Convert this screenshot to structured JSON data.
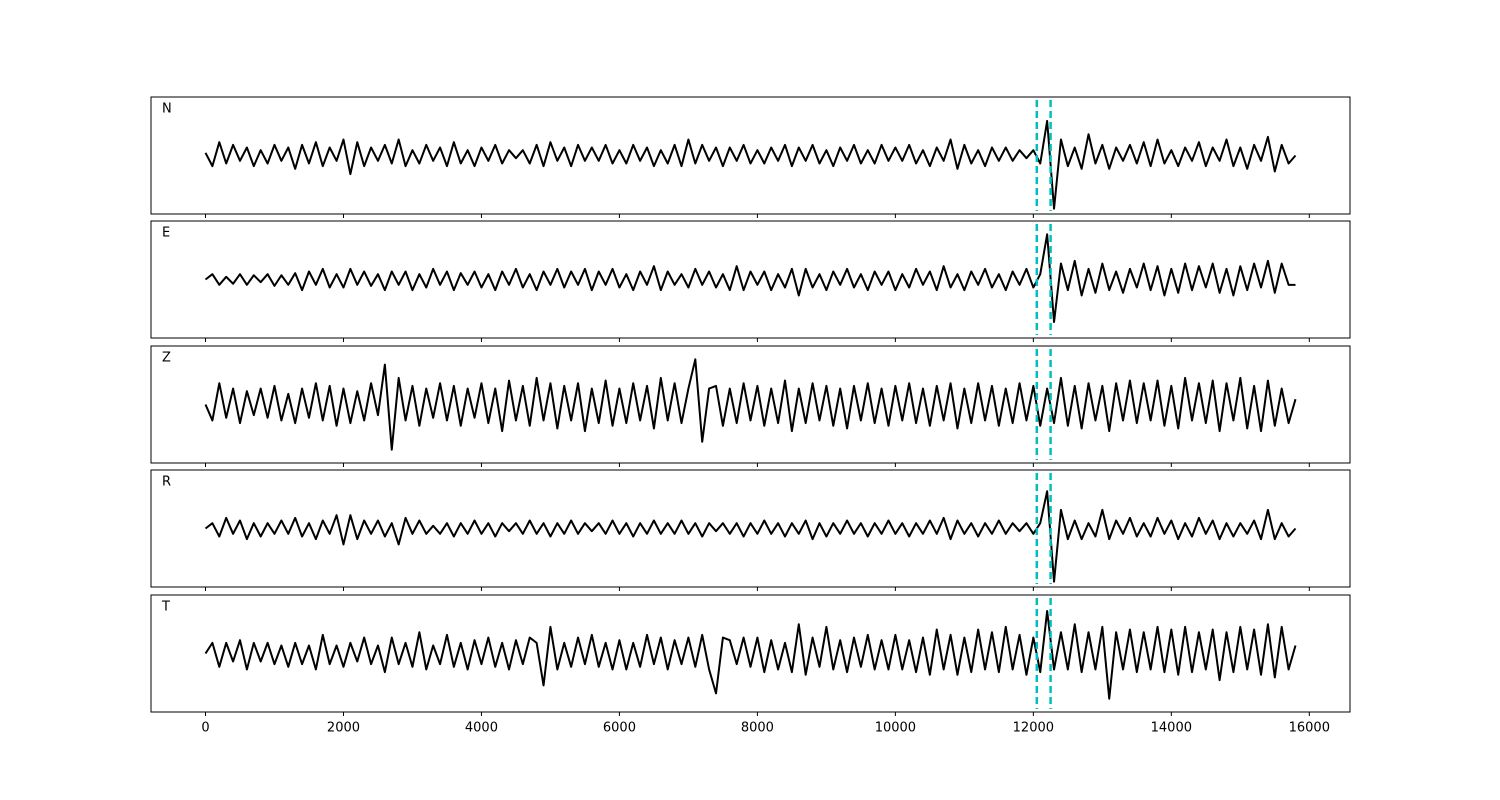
{
  "chart_data": {
    "type": "line",
    "x": [
      0,
      100,
      200,
      300,
      400,
      500,
      600,
      700,
      800,
      900,
      1000,
      1100,
      1200,
      1300,
      1400,
      1500,
      1600,
      1700,
      1800,
      1900,
      2000,
      2100,
      2200,
      2300,
      2400,
      2500,
      2600,
      2700,
      2800,
      2900,
      3000,
      3100,
      3200,
      3300,
      3400,
      3500,
      3600,
      3700,
      3800,
      3900,
      4000,
      4100,
      4200,
      4300,
      4400,
      4500,
      4600,
      4700,
      4800,
      4900,
      5000,
      5100,
      5200,
      5300,
      5400,
      5500,
      5600,
      5700,
      5800,
      5900,
      6000,
      6100,
      6200,
      6300,
      6400,
      6500,
      6600,
      6700,
      6800,
      6900,
      7000,
      7100,
      7200,
      7300,
      7400,
      7500,
      7600,
      7700,
      7800,
      7900,
      8000,
      8100,
      8200,
      8300,
      8400,
      8500,
      8600,
      8700,
      8800,
      8900,
      9000,
      9100,
      9200,
      9300,
      9400,
      9500,
      9600,
      9700,
      9800,
      9900,
      10000,
      10100,
      10200,
      10300,
      10400,
      10500,
      10600,
      10700,
      10800,
      10900,
      11000,
      11100,
      11200,
      11300,
      11400,
      11500,
      11600,
      11700,
      11800,
      11900,
      12000,
      12100,
      12200,
      12300,
      12400,
      12500,
      12600,
      12700,
      12800,
      12900,
      13000,
      13100,
      13200,
      13300,
      13400,
      13500,
      13600,
      13700,
      13800,
      13900,
      14000,
      14100,
      14200,
      14300,
      14400,
      14500,
      14600,
      14700,
      14800,
      14900,
      15000,
      15100,
      15200,
      15300,
      15400,
      15500,
      15600,
      15700,
      15800
    ],
    "series": [
      {
        "name": "N",
        "color": "#000000",
        "values": [
          0.05,
          -0.2,
          0.25,
          -0.15,
          0.2,
          -0.1,
          0.15,
          -0.2,
          0.1,
          -0.15,
          0.2,
          -0.1,
          0.15,
          -0.25,
          0.2,
          -0.15,
          0.25,
          -0.2,
          0.15,
          -0.1,
          0.3,
          -0.35,
          0.25,
          -0.2,
          0.15,
          -0.1,
          0.2,
          -0.15,
          0.3,
          -0.2,
          0.1,
          -0.15,
          0.2,
          -0.1,
          0.15,
          -0.2,
          0.25,
          -0.15,
          0.1,
          -0.2,
          0.15,
          -0.1,
          0.2,
          -0.15,
          0.1,
          -0.05,
          0.1,
          -0.15,
          0.2,
          -0.2,
          0.25,
          -0.1,
          0.15,
          -0.2,
          0.2,
          -0.1,
          0.15,
          -0.1,
          0.2,
          -0.15,
          0.1,
          -0.15,
          0.2,
          -0.1,
          0.15,
          -0.2,
          0.1,
          -0.15,
          0.2,
          -0.2,
          0.3,
          -0.15,
          0.2,
          -0.1,
          0.15,
          -0.2,
          0.15,
          -0.1,
          0.2,
          -0.15,
          0.1,
          -0.15,
          0.15,
          -0.1,
          0.2,
          -0.2,
          0.15,
          -0.1,
          0.2,
          -0.15,
          0.1,
          -0.2,
          0.15,
          -0.1,
          0.2,
          -0.15,
          0.1,
          -0.15,
          0.2,
          -0.1,
          0.15,
          -0.1,
          0.2,
          -0.15,
          0.1,
          -0.2,
          0.15,
          -0.1,
          0.3,
          -0.25,
          0.2,
          -0.15,
          0.1,
          -0.2,
          0.15,
          -0.1,
          0.15,
          -0.1,
          0.1,
          -0.05,
          0.1,
          -0.15,
          0.65,
          -1.0,
          0.3,
          -0.2,
          0.15,
          -0.25,
          0.4,
          -0.15,
          0.2,
          -0.25,
          0.15,
          -0.1,
          0.2,
          -0.15,
          0.25,
          -0.2,
          0.3,
          -0.15,
          0.1,
          -0.2,
          0.15,
          -0.1,
          0.25,
          -0.2,
          0.15,
          -0.1,
          0.3,
          -0.2,
          0.15,
          -0.25,
          0.2,
          -0.1,
          0.35,
          -0.3,
          0.2,
          -0.15,
          0.0
        ]
      },
      {
        "name": "E",
        "color": "#000000",
        "values": [
          0.0,
          0.1,
          -0.1,
          0.05,
          -0.08,
          0.1,
          -0.1,
          0.08,
          -0.05,
          0.1,
          -0.12,
          0.08,
          -0.1,
          0.12,
          -0.2,
          0.15,
          -0.1,
          0.2,
          -0.15,
          0.1,
          -0.15,
          0.2,
          -0.1,
          0.15,
          -0.12,
          0.1,
          -0.2,
          0.15,
          -0.1,
          0.15,
          -0.2,
          0.1,
          -0.15,
          0.2,
          -0.1,
          0.15,
          -0.2,
          0.12,
          -0.1,
          0.15,
          -0.15,
          0.1,
          -0.2,
          0.15,
          -0.1,
          0.2,
          -0.15,
          0.1,
          -0.2,
          0.15,
          -0.1,
          0.2,
          -0.15,
          0.15,
          -0.1,
          0.2,
          -0.2,
          0.15,
          -0.1,
          0.2,
          -0.15,
          0.1,
          -0.2,
          0.15,
          -0.1,
          0.25,
          -0.2,
          0.15,
          -0.1,
          0.1,
          -0.15,
          0.2,
          -0.1,
          0.15,
          -0.15,
          0.1,
          -0.2,
          0.25,
          -0.2,
          0.15,
          -0.1,
          0.15,
          -0.2,
          0.1,
          -0.15,
          0.2,
          -0.3,
          0.2,
          -0.15,
          0.1,
          -0.2,
          0.15,
          -0.1,
          0.2,
          -0.15,
          0.1,
          -0.2,
          0.15,
          -0.1,
          0.15,
          -0.2,
          0.1,
          -0.15,
          0.2,
          -0.1,
          0.15,
          -0.2,
          0.25,
          -0.15,
          0.1,
          -0.2,
          0.15,
          -0.1,
          0.2,
          -0.15,
          0.1,
          -0.2,
          0.15,
          -0.1,
          0.2,
          -0.15,
          0.1,
          0.85,
          -0.8,
          0.3,
          -0.2,
          0.35,
          -0.3,
          0.2,
          -0.25,
          0.3,
          -0.2,
          0.15,
          -0.25,
          0.2,
          -0.15,
          0.3,
          -0.2,
          0.25,
          -0.3,
          0.2,
          -0.25,
          0.3,
          -0.2,
          0.25,
          -0.15,
          0.3,
          -0.25,
          0.2,
          -0.3,
          0.25,
          -0.2,
          0.3,
          -0.15,
          0.35,
          -0.25,
          0.3,
          -0.1,
          -0.1
        ]
      },
      {
        "name": "Z",
        "color": "#000000",
        "values": [
          0.0,
          -0.3,
          0.4,
          -0.25,
          0.3,
          -0.35,
          0.25,
          -0.2,
          0.3,
          -0.25,
          0.35,
          -0.3,
          0.2,
          -0.35,
          0.3,
          -0.25,
          0.4,
          -0.3,
          0.35,
          -0.4,
          0.3,
          -0.35,
          0.25,
          -0.3,
          0.4,
          -0.2,
          0.75,
          -0.85,
          0.5,
          -0.3,
          0.35,
          -0.4,
          0.3,
          -0.25,
          0.4,
          -0.3,
          0.35,
          -0.4,
          0.3,
          -0.25,
          0.4,
          -0.35,
          0.3,
          -0.5,
          0.45,
          -0.3,
          0.35,
          -0.4,
          0.5,
          -0.3,
          0.4,
          -0.45,
          0.35,
          -0.3,
          0.4,
          -0.5,
          0.3,
          -0.35,
          0.45,
          -0.4,
          0.3,
          -0.35,
          0.4,
          -0.3,
          0.35,
          -0.45,
          0.5,
          -0.3,
          0.4,
          -0.35,
          0.3,
          0.85,
          -0.7,
          0.3,
          0.35,
          -0.4,
          0.3,
          -0.35,
          0.4,
          -0.3,
          0.35,
          -0.4,
          0.3,
          -0.35,
          0.45,
          -0.5,
          0.3,
          -0.35,
          0.4,
          -0.3,
          0.35,
          -0.4,
          0.3,
          -0.45,
          0.35,
          -0.3,
          0.4,
          -0.35,
          0.3,
          -0.4,
          0.35,
          -0.3,
          0.4,
          -0.35,
          0.3,
          -0.4,
          0.35,
          -0.3,
          0.4,
          -0.45,
          0.3,
          -0.35,
          0.4,
          -0.3,
          0.35,
          -0.4,
          0.3,
          -0.35,
          0.4,
          -0.3,
          0.35,
          -0.4,
          0.3,
          -0.35,
          0.5,
          -0.4,
          0.35,
          -0.45,
          0.4,
          -0.3,
          0.35,
          -0.5,
          0.4,
          -0.3,
          0.45,
          -0.35,
          0.4,
          -0.3,
          0.45,
          -0.4,
          0.35,
          -0.45,
          0.5,
          -0.3,
          0.4,
          -0.35,
          0.45,
          -0.5,
          0.4,
          -0.3,
          0.5,
          -0.45,
          0.35,
          -0.5,
          0.45,
          -0.4,
          0.3,
          -0.35,
          0.1
        ]
      },
      {
        "name": "R",
        "color": "#000000",
        "values": [
          0.0,
          0.1,
          -0.15,
          0.2,
          -0.1,
          0.15,
          -0.2,
          0.1,
          -0.15,
          0.1,
          -0.1,
          0.15,
          -0.1,
          0.2,
          -0.15,
          0.1,
          -0.2,
          0.15,
          -0.1,
          0.25,
          -0.3,
          0.25,
          -0.2,
          0.15,
          -0.1,
          0.15,
          -0.15,
          0.1,
          -0.3,
          0.2,
          -0.1,
          0.15,
          -0.1,
          0.05,
          -0.1,
          0.1,
          -0.15,
          0.1,
          -0.1,
          0.15,
          -0.1,
          0.1,
          -0.15,
          0.1,
          -0.05,
          0.1,
          -0.1,
          0.15,
          -0.1,
          0.1,
          -0.15,
          0.1,
          -0.1,
          0.15,
          -0.1,
          0.1,
          -0.05,
          0.1,
          -0.1,
          0.15,
          -0.1,
          0.1,
          -0.15,
          0.1,
          -0.1,
          0.15,
          -0.1,
          0.1,
          -0.1,
          0.15,
          -0.1,
          0.1,
          -0.15,
          0.1,
          -0.05,
          0.1,
          -0.1,
          0.1,
          -0.15,
          0.1,
          -0.1,
          0.15,
          -0.1,
          0.1,
          -0.15,
          0.1,
          -0.1,
          0.15,
          -0.2,
          0.1,
          -0.15,
          0.1,
          -0.1,
          0.15,
          -0.1,
          0.1,
          -0.15,
          0.1,
          -0.1,
          0.15,
          -0.1,
          0.1,
          -0.15,
          0.1,
          -0.1,
          0.15,
          -0.1,
          0.2,
          -0.2,
          0.15,
          -0.1,
          0.1,
          -0.15,
          0.1,
          -0.1,
          0.15,
          -0.1,
          0.1,
          -0.05,
          0.1,
          -0.1,
          0.1,
          0.7,
          -1.0,
          0.35,
          -0.2,
          0.15,
          -0.2,
          0.1,
          -0.15,
          0.35,
          -0.2,
          0.15,
          -0.1,
          0.2,
          -0.15,
          0.1,
          -0.15,
          0.2,
          -0.1,
          0.15,
          -0.2,
          0.1,
          -0.15,
          0.2,
          -0.1,
          0.15,
          -0.2,
          0.1,
          -0.15,
          0.1,
          -0.1,
          0.15,
          -0.2,
          0.35,
          -0.2,
          0.1,
          -0.15,
          0.0
        ]
      },
      {
        "name": "T",
        "color": "#000000",
        "values": [
          0.0,
          0.2,
          -0.25,
          0.2,
          -0.15,
          0.25,
          -0.3,
          0.2,
          -0.15,
          0.2,
          -0.2,
          0.15,
          -0.25,
          0.2,
          -0.2,
          0.15,
          -0.3,
          0.35,
          -0.2,
          0.15,
          -0.25,
          0.2,
          -0.15,
          0.3,
          -0.2,
          0.15,
          -0.35,
          0.3,
          -0.2,
          0.2,
          -0.25,
          0.4,
          -0.3,
          0.15,
          -0.2,
          0.35,
          -0.25,
          0.2,
          -0.3,
          0.25,
          -0.2,
          0.3,
          -0.25,
          0.2,
          -0.3,
          0.25,
          -0.2,
          0.3,
          0.2,
          -0.6,
          0.5,
          -0.3,
          0.2,
          -0.25,
          0.3,
          -0.2,
          0.35,
          -0.25,
          0.2,
          -0.3,
          0.25,
          -0.3,
          0.2,
          -0.25,
          0.35,
          -0.2,
          0.3,
          -0.3,
          0.25,
          -0.2,
          0.3,
          -0.25,
          0.35,
          -0.3,
          -0.75,
          0.3,
          0.25,
          -0.2,
          0.3,
          -0.25,
          0.3,
          -0.35,
          0.25,
          -0.3,
          0.2,
          -0.35,
          0.55,
          -0.4,
          0.3,
          -0.25,
          0.5,
          -0.3,
          0.25,
          -0.35,
          0.3,
          -0.25,
          0.35,
          -0.3,
          0.25,
          -0.3,
          0.35,
          -0.3,
          0.25,
          -0.35,
          0.3,
          -0.4,
          0.45,
          -0.3,
          0.35,
          -0.4,
          0.3,
          -0.35,
          0.45,
          -0.3,
          0.4,
          -0.35,
          0.5,
          -0.3,
          0.35,
          -0.4,
          0.3,
          -0.35,
          0.8,
          -0.3,
          0.4,
          -0.3,
          0.55,
          -0.35,
          0.4,
          -0.3,
          0.5,
          -0.85,
          0.4,
          -0.3,
          0.45,
          -0.35,
          0.4,
          -0.3,
          0.5,
          -0.35,
          0.45,
          -0.4,
          0.5,
          -0.35,
          0.4,
          -0.3,
          0.45,
          -0.5,
          0.4,
          -0.35,
          0.5,
          -0.3,
          0.45,
          -0.4,
          0.55,
          -0.45,
          0.5,
          -0.3,
          0.15
        ]
      }
    ],
    "picks": [
      12050,
      12250
    ],
    "pick_color": "#00bfbf",
    "xlim": [
      -790,
      16590
    ],
    "xticks": [
      0,
      2000,
      4000,
      6000,
      8000,
      10000,
      12000,
      14000,
      16000
    ],
    "ylim": [
      -1.1,
      1.1
    ]
  }
}
